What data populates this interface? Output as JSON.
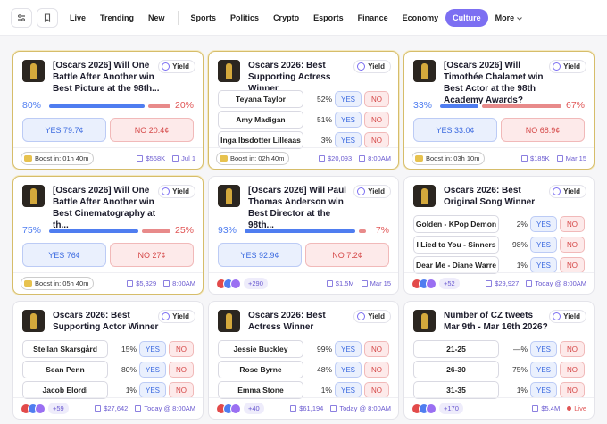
{
  "nav": {
    "tabs": [
      "Live",
      "Trending",
      "New",
      "Sports",
      "Politics",
      "Crypto",
      "Esports",
      "Finance",
      "Economy",
      "Culture"
    ],
    "active": "Culture",
    "more": "More"
  },
  "common": {
    "yield": "Yield",
    "yes": "YES",
    "no": "NO"
  },
  "cards": [
    {
      "kind": "binary",
      "featured": true,
      "title": "[Oscars 2026] Will One Battle After Another win Best Picture at the 98th...",
      "yes_pct": "80%",
      "no_pct": "20%",
      "yes_price": "YES 79.7¢",
      "no_price": "NO 20.4¢",
      "boost": "Boost in: 01h 40m",
      "volume": "$568K",
      "date": "Jul 1"
    },
    {
      "kind": "multi",
      "featured": true,
      "title": "Oscars 2026: Best Supporting Actress Winner",
      "outcomes": [
        {
          "name": "Teyana Taylor",
          "pct": "52%"
        },
        {
          "name": "Amy Madigan",
          "pct": "51%"
        },
        {
          "name": "Inga Ibsdotter Lilleaas",
          "pct": "3%"
        }
      ],
      "boost": "Boost in: 02h 40m",
      "volume": "$20,093",
      "date": "8:00AM"
    },
    {
      "kind": "binary",
      "featured": true,
      "title": "[Oscars 2026] Will Timothée Chalamet win Best Actor at the 98th Academy Awards?",
      "yes_pct": "33%",
      "no_pct": "67%",
      "yes_price": "YES 33.0¢",
      "no_price": "NO 68.9¢",
      "boost": "Boost in: 03h 10m",
      "volume": "$185K",
      "date": "Mar 15"
    },
    {
      "kind": "binary",
      "featured": true,
      "title": "[Oscars 2026] Will One Battle After Another win Best Cinematography at th...",
      "yes_pct": "75%",
      "no_pct": "25%",
      "yes_price": "YES 76¢",
      "no_price": "NO 27¢",
      "boost": "Boost in: 05h 40m",
      "volume": "$5,329",
      "date": "8:00AM"
    },
    {
      "kind": "binary",
      "featured": false,
      "title": "[Oscars 2026] Will Paul Thomas Anderson win Best Director at the 98th...",
      "yes_pct": "93%",
      "no_pct": "7%",
      "yes_price": "YES 92.9¢",
      "no_price": "NO 7.2¢",
      "traders": "+290",
      "volume": "$1.5M",
      "date": "Mar 15"
    },
    {
      "kind": "multi",
      "featured": false,
      "title": "Oscars 2026: Best Original Song Winner",
      "outcomes": [
        {
          "name": "Golden - KPop Demon",
          "pct": "2%"
        },
        {
          "name": "I Lied to You - Sinners",
          "pct": "98%"
        },
        {
          "name": "Dear Me - Diane Warre",
          "pct": "1%"
        }
      ],
      "traders": "+52",
      "volume": "$29,927",
      "date": "Today @ 8:00AM"
    },
    {
      "kind": "multi",
      "featured": false,
      "title": "Oscars 2026: Best Supporting Actor Winner",
      "outcomes": [
        {
          "name": "Stellan Skarsgård",
          "pct": "15%"
        },
        {
          "name": "Sean Penn",
          "pct": "80%"
        },
        {
          "name": "Jacob Elordi",
          "pct": "1%"
        }
      ],
      "traders": "+59",
      "volume": "$27,642",
      "date": "Today @ 8:00AM"
    },
    {
      "kind": "multi",
      "featured": false,
      "title": "Oscars 2026: Best Actress Winner",
      "outcomes": [
        {
          "name": "Jessie Buckley",
          "pct": "99%"
        },
        {
          "name": "Rose Byrne",
          "pct": "48%"
        },
        {
          "name": "Emma Stone",
          "pct": "1%"
        }
      ],
      "traders": "+40",
      "volume": "$61,194",
      "date": "Today @ 8:00AM"
    },
    {
      "kind": "multi",
      "featured": false,
      "title": "Number of CZ tweets Mar 9th - Mar 16th 2026?",
      "outcomes": [
        {
          "name": "21-25",
          "pct": "—%"
        },
        {
          "name": "26-30",
          "pct": "75%"
        },
        {
          "name": "31-35",
          "pct": "1%"
        }
      ],
      "traders": "+170",
      "volume": "$5.4M",
      "status": "Live"
    }
  ]
}
